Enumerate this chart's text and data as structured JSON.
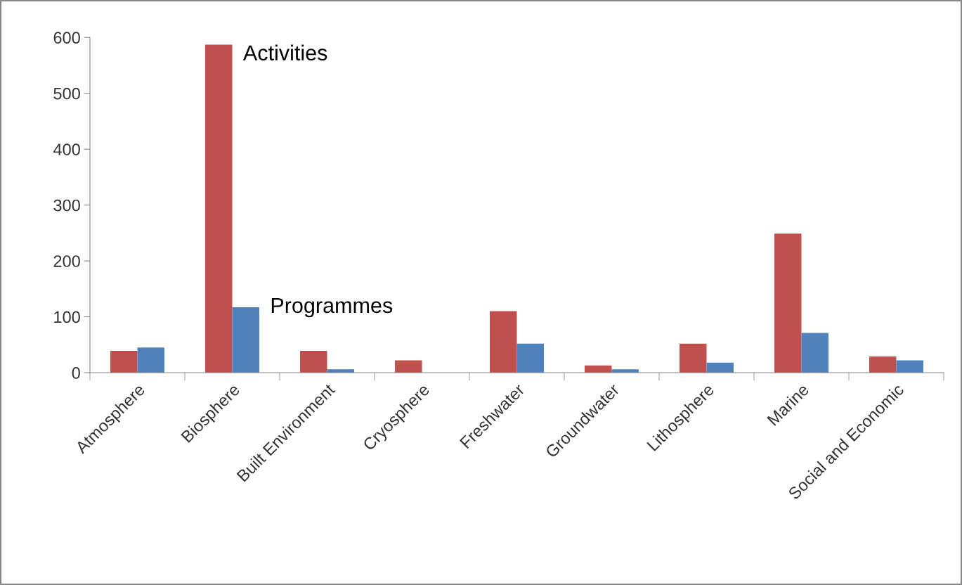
{
  "chart_data": {
    "type": "bar",
    "categories": [
      "Atmosphere",
      "Biosphere",
      "Built Environment",
      "Cryosphere",
      "Freshwater",
      "Groundwater",
      "Lithosphere",
      "Marine",
      "Social and Economic"
    ],
    "series": [
      {
        "name": "Activities",
        "color": "#c0504d",
        "values": [
          39,
          587,
          39,
          22,
          110,
          13,
          52,
          249,
          29
        ]
      },
      {
        "name": "Programmes",
        "color": "#4f81bd",
        "values": [
          45,
          117,
          6,
          0,
          52,
          6,
          18,
          71,
          22
        ]
      }
    ],
    "ylim": [
      0,
      600
    ],
    "yticks": [
      0,
      100,
      200,
      300,
      400,
      500,
      600
    ],
    "grid": false,
    "legend": false
  }
}
